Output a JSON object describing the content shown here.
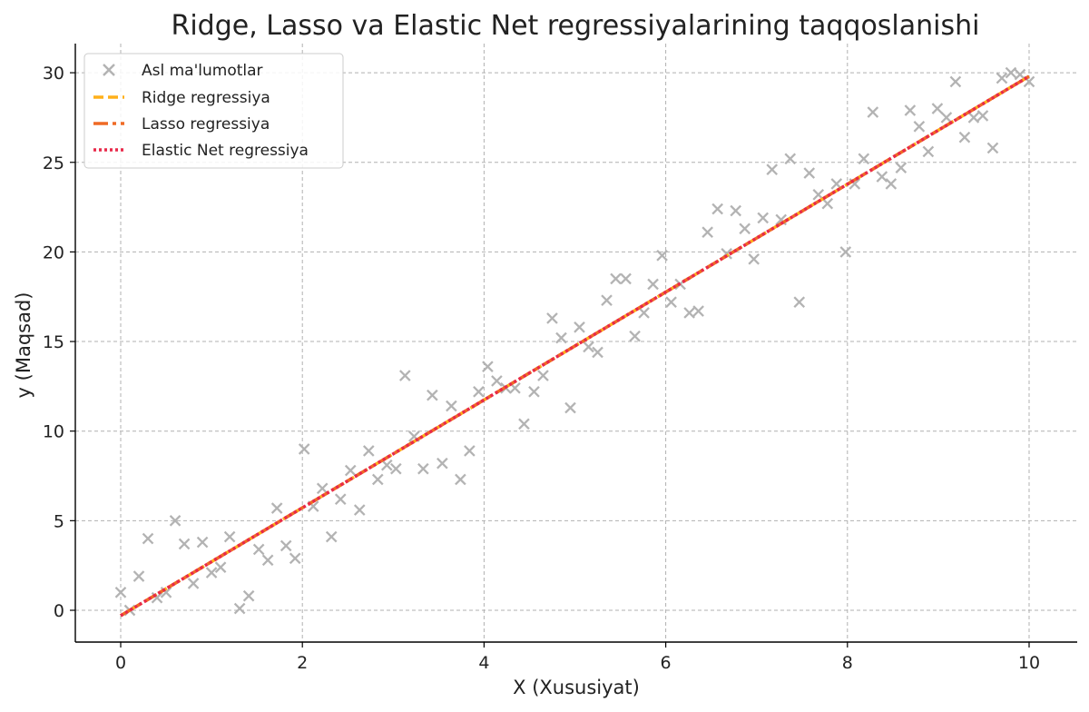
{
  "chart_data": {
    "type": "scatter",
    "title": "Ridge, Lasso va Elastic Net regressiyalarining taqqoslanishi",
    "xlabel": "X (Xususiyat)",
    "ylabel": "y (Maqsad)",
    "xlim": [
      -0.5,
      10.5
    ],
    "ylim": [
      -1.8,
      31.5
    ],
    "xticks": [
      0,
      2,
      4,
      6,
      8,
      10
    ],
    "yticks": [
      0,
      5,
      10,
      15,
      20,
      25,
      30
    ],
    "grid": true,
    "legend_position": "top-left",
    "colors": {
      "points": "#b3b3b3",
      "ridge": "#ffb01a",
      "lasso": "#ef6a25",
      "elastic": "#e8294a"
    },
    "series": [
      {
        "name": "Asl ma'lumotlar",
        "kind": "scatter",
        "marker": "x",
        "points": [
          [
            0.0,
            1.0
          ],
          [
            0.1,
            0.0
          ],
          [
            0.2,
            1.9
          ],
          [
            0.3,
            4.0
          ],
          [
            0.4,
            0.7
          ],
          [
            0.5,
            1.0
          ],
          [
            0.6,
            5.0
          ],
          [
            0.7,
            3.7
          ],
          [
            0.8,
            1.5
          ],
          [
            0.9,
            3.8
          ],
          [
            1.0,
            2.1
          ],
          [
            1.1,
            2.4
          ],
          [
            1.2,
            4.1
          ],
          [
            1.31,
            0.1
          ],
          [
            1.41,
            0.8
          ],
          [
            1.52,
            3.4
          ],
          [
            1.62,
            2.8
          ],
          [
            1.72,
            5.7
          ],
          [
            1.82,
            3.6
          ],
          [
            1.92,
            2.9
          ],
          [
            2.02,
            9.0
          ],
          [
            2.12,
            5.8
          ],
          [
            2.22,
            6.8
          ],
          [
            2.32,
            4.1
          ],
          [
            2.42,
            6.2
          ],
          [
            2.53,
            7.8
          ],
          [
            2.63,
            5.6
          ],
          [
            2.73,
            8.9
          ],
          [
            2.83,
            7.3
          ],
          [
            2.93,
            8.1
          ],
          [
            3.03,
            7.9
          ],
          [
            3.13,
            13.1
          ],
          [
            3.23,
            9.7
          ],
          [
            3.33,
            7.9
          ],
          [
            3.43,
            12.0
          ],
          [
            3.54,
            8.2
          ],
          [
            3.64,
            11.4
          ],
          [
            3.74,
            7.3
          ],
          [
            3.84,
            8.9
          ],
          [
            3.94,
            12.2
          ],
          [
            4.04,
            13.6
          ],
          [
            4.14,
            12.8
          ],
          [
            4.24,
            12.4
          ],
          [
            4.34,
            12.4
          ],
          [
            4.44,
            10.4
          ],
          [
            4.55,
            12.2
          ],
          [
            4.65,
            13.1
          ],
          [
            4.75,
            16.3
          ],
          [
            4.85,
            15.2
          ],
          [
            4.95,
            11.3
          ],
          [
            5.05,
            15.8
          ],
          [
            5.15,
            14.7
          ],
          [
            5.25,
            14.4
          ],
          [
            5.35,
            17.3
          ],
          [
            5.45,
            18.5
          ],
          [
            5.56,
            18.5
          ],
          [
            5.66,
            15.3
          ],
          [
            5.76,
            16.6
          ],
          [
            5.86,
            18.2
          ],
          [
            5.96,
            19.8
          ],
          [
            6.06,
            17.2
          ],
          [
            6.16,
            18.2
          ],
          [
            6.26,
            16.6
          ],
          [
            6.36,
            16.7
          ],
          [
            6.46,
            21.1
          ],
          [
            6.57,
            22.4
          ],
          [
            6.67,
            19.9
          ],
          [
            6.77,
            22.3
          ],
          [
            6.87,
            21.3
          ],
          [
            6.97,
            19.6
          ],
          [
            7.07,
            21.9
          ],
          [
            7.17,
            24.6
          ],
          [
            7.27,
            21.8
          ],
          [
            7.37,
            25.2
          ],
          [
            7.47,
            17.2
          ],
          [
            7.58,
            24.4
          ],
          [
            7.68,
            23.2
          ],
          [
            7.78,
            22.7
          ],
          [
            7.88,
            23.8
          ],
          [
            7.98,
            20.0
          ],
          [
            8.08,
            23.8
          ],
          [
            8.18,
            25.2
          ],
          [
            8.28,
            27.8
          ],
          [
            8.38,
            24.2
          ],
          [
            8.48,
            23.8
          ],
          [
            8.59,
            24.7
          ],
          [
            8.69,
            27.9
          ],
          [
            8.79,
            27.0
          ],
          [
            8.89,
            25.6
          ],
          [
            8.99,
            28.0
          ],
          [
            9.09,
            27.5
          ],
          [
            9.19,
            29.5
          ],
          [
            9.29,
            26.4
          ],
          [
            9.39,
            27.5
          ],
          [
            9.49,
            27.6
          ],
          [
            9.6,
            25.8
          ],
          [
            9.7,
            29.7
          ],
          [
            9.8,
            30.0
          ],
          [
            9.9,
            29.9
          ],
          [
            10.0,
            29.5
          ]
        ]
      },
      {
        "name": "Ridge regressiya",
        "kind": "line",
        "style": "dashed",
        "x": [
          0,
          10
        ],
        "y": [
          -0.3,
          29.8
        ]
      },
      {
        "name": "Lasso regressiya",
        "kind": "line",
        "style": "dashdot",
        "x": [
          0,
          10
        ],
        "y": [
          -0.3,
          29.8
        ]
      },
      {
        "name": "Elastic Net regressiya",
        "kind": "line",
        "style": "dotted",
        "x": [
          0,
          10
        ],
        "y": [
          -0.3,
          29.8
        ]
      }
    ]
  }
}
